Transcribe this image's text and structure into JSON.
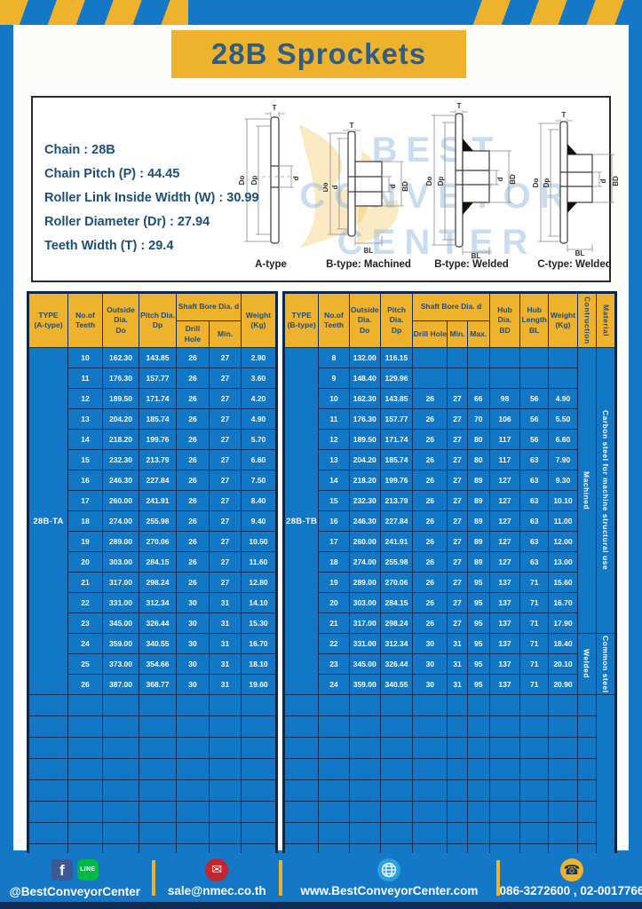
{
  "page": {
    "title": "28B Sprockets"
  },
  "specs": {
    "lines": [
      "Chain  : 28B",
      "Chain Pitch (P)  : 44.45",
      "Roller Link Inside Width (W)  : 30.99",
      "Roller Diameter (Dr)  : 27.94",
      "Teeth Width (T)  : 29.4"
    ]
  },
  "watermark": {
    "line1": "BEST",
    "line2": "CONVEYOR",
    "line3": "CENTER"
  },
  "diagrams": {
    "captions": [
      "A-type",
      "B-type: Machined",
      "B-type: Welded",
      "C-type: Welded"
    ],
    "dims": {
      "t": "T",
      "do": "Do",
      "dp": "Dp",
      "d": "d",
      "bd": "BD",
      "bl": "BL"
    }
  },
  "tables": {
    "left": {
      "type_label": "28B-TA",
      "headers": {
        "type": "TYPE\n(A-type)",
        "teeth": "No.of\nTeeth",
        "outside": "Outside\nDia.\nDo",
        "pitch": "Pitch Dia.\nDp",
        "shaft": "Shaft Bore Dia. d",
        "drill": "Drill Hole",
        "min": "Min.",
        "weight": "Weight\n(Kg)"
      },
      "rows": [
        [
          "10",
          "162.30",
          "143.85",
          "26",
          "27",
          "2.90"
        ],
        [
          "11",
          "176.30",
          "157.77",
          "26",
          "27",
          "3.60"
        ],
        [
          "12",
          "189.50",
          "171.74",
          "26",
          "27",
          "4.20"
        ],
        [
          "13",
          "204.20",
          "185.74",
          "26",
          "27",
          "4.90"
        ],
        [
          "14",
          "218.20",
          "199.76",
          "26",
          "27",
          "5.70"
        ],
        [
          "15",
          "232.30",
          "213.79",
          "26",
          "27",
          "6.60"
        ],
        [
          "16",
          "246.30",
          "227.84",
          "26",
          "27",
          "7.50"
        ],
        [
          "17",
          "260.00",
          "241.91",
          "26",
          "27",
          "8.40"
        ],
        [
          "18",
          "274.00",
          "255.98",
          "26",
          "27",
          "9.40"
        ],
        [
          "19",
          "289.00",
          "270.06",
          "26",
          "27",
          "10.50"
        ],
        [
          "20",
          "303.00",
          "284.15",
          "26",
          "27",
          "11.60"
        ],
        [
          "21",
          "317.00",
          "298.24",
          "26",
          "27",
          "12.80"
        ],
        [
          "22",
          "331.00",
          "312.34",
          "30",
          "31",
          "14.10"
        ],
        [
          "23",
          "345.00",
          "326.44",
          "30",
          "31",
          "15.30"
        ],
        [
          "24",
          "359.00",
          "340.55",
          "30",
          "31",
          "16.70"
        ],
        [
          "25",
          "373.00",
          "354.66",
          "30",
          "31",
          "18.10"
        ],
        [
          "26",
          "387.00",
          "368.77",
          "30",
          "31",
          "19.60"
        ]
      ],
      "empty_rows": 8
    },
    "right": {
      "type_label": "28B-TB",
      "headers": {
        "type": "TYPE\n(B-type)",
        "teeth": "No.of\nTeeth",
        "outside": "Outside\nDia.\nDo",
        "pitch": "Pitch Dia.\nDp",
        "shaft": "Shaft Bore Dia. d",
        "drill": "Drill Hole",
        "min": "Min.",
        "max": "Max.",
        "hub_dia": "Hub Dia.\nBD",
        "hub_len": "Hub\nLength\nBL",
        "weight": "Weight\n(Kg)",
        "construction": "Contruction",
        "material": "Material"
      },
      "rows": [
        [
          "8",
          "132.00",
          "116.15",
          "",
          "",
          "",
          "",
          "",
          ""
        ],
        [
          "9",
          "148.40",
          "129.96",
          "",
          "",
          "",
          "",
          "",
          ""
        ],
        [
          "10",
          "162.30",
          "143.85",
          "26",
          "27",
          "66",
          "98",
          "56",
          "4.90"
        ],
        [
          "11",
          "176.30",
          "157.77",
          "26",
          "27",
          "70",
          "106",
          "56",
          "5.50"
        ],
        [
          "12",
          "189.50",
          "171.74",
          "26",
          "27",
          "80",
          "117",
          "56",
          "6.60"
        ],
        [
          "13",
          "204.20",
          "185.74",
          "26",
          "27",
          "80",
          "117",
          "63",
          "7.90"
        ],
        [
          "14",
          "218.20",
          "199.76",
          "26",
          "27",
          "89",
          "127",
          "63",
          "9.30"
        ],
        [
          "15",
          "232.30",
          "213.79",
          "26",
          "27",
          "89",
          "127",
          "63",
          "10.10"
        ],
        [
          "16",
          "246.30",
          "227.84",
          "26",
          "27",
          "89",
          "127",
          "63",
          "11.00"
        ],
        [
          "17",
          "260.00",
          "241.91",
          "26",
          "27",
          "89",
          "127",
          "63",
          "12.00"
        ],
        [
          "18",
          "274.00",
          "255.98",
          "26",
          "27",
          "89",
          "127",
          "63",
          "13.00"
        ],
        [
          "19",
          "289.00",
          "270.06",
          "26",
          "27",
          "95",
          "137",
          "71",
          "15.60"
        ],
        [
          "20",
          "303.00",
          "284.15",
          "26",
          "27",
          "95",
          "137",
          "71",
          "16.70"
        ],
        [
          "21",
          "317.00",
          "298.24",
          "26",
          "27",
          "95",
          "137",
          "71",
          "17.90"
        ],
        [
          "22",
          "331.00",
          "312.34",
          "30",
          "31",
          "95",
          "137",
          "71",
          "18.40"
        ],
        [
          "23",
          "345.00",
          "326.44",
          "30",
          "31",
          "95",
          "137",
          "71",
          "20.10"
        ],
        [
          "24",
          "359.00",
          "340.55",
          "30",
          "31",
          "95",
          "137",
          "71",
          "20.90"
        ]
      ],
      "construction_spans": [
        {
          "label": "Machined",
          "from": 0,
          "count": 14
        },
        {
          "label": "Welded",
          "from": 14,
          "count": 3
        }
      ],
      "material_spans": [
        {
          "label": "Carbon steel for machine structural use",
          "from": 0,
          "count": 14
        },
        {
          "label": "Common steel",
          "from": 14,
          "count": 3
        }
      ],
      "empty_rows": 8
    }
  },
  "footer": {
    "line_icon_text": "LINE",
    "fb_icon_text": "f",
    "items": {
      "social": "@BestConveyorCenter",
      "email": "sale@nmec.co.th",
      "website": "www.BestConveyorCenter.com",
      "phone": "086-3272600 , 02-0017766"
    }
  },
  "colors": {
    "frame_blue": "#1478c6",
    "cell_blue": "#1277c5",
    "grid_navy": "#14305f",
    "accent_yellow": "#eeb22c",
    "header_text": "#1d4d7c",
    "footer_dark": "#0e2c55"
  }
}
